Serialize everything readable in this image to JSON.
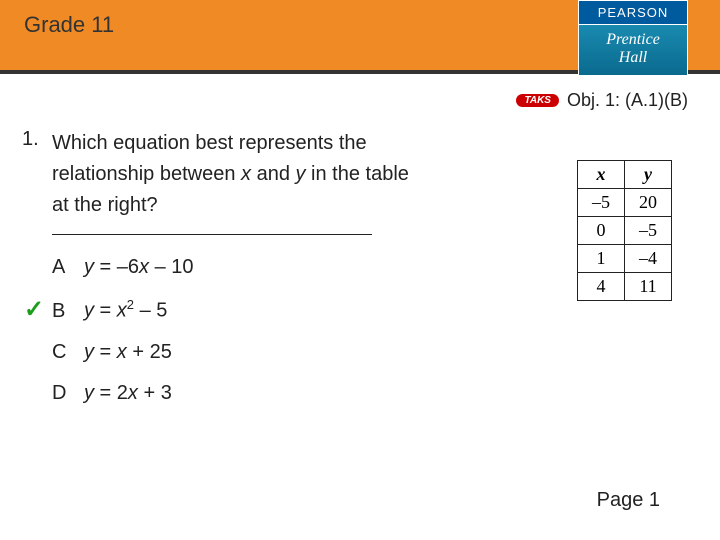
{
  "header": {
    "grade": "Grade 11"
  },
  "logo": {
    "pearson": "PEARSON",
    "prentice1": "Prentice",
    "prentice2": "Hall"
  },
  "obj": {
    "badge": "TAKS",
    "text": "Obj. 1: (A.1)(B)"
  },
  "question": {
    "number": "1.",
    "text_parts": [
      "Which equation best represents the relationship between ",
      "x",
      " and ",
      "y",
      " in the table at the right?"
    ]
  },
  "choices": [
    {
      "letter": "A",
      "pre": "y",
      "eq": " = –6",
      "var": "x",
      "post": " – 10",
      "sup": "",
      "correct": false
    },
    {
      "letter": "B",
      "pre": "y",
      "eq": " = ",
      "var": "x",
      "post": " – 5",
      "sup": "2",
      "correct": true
    },
    {
      "letter": "C",
      "pre": "y",
      "eq": " = ",
      "var": "x",
      "post": " + 25",
      "sup": "",
      "correct": false
    },
    {
      "letter": "D",
      "pre": "y",
      "eq": " = 2",
      "var": "x",
      "post": " + 3",
      "sup": "",
      "correct": false
    }
  ],
  "table": {
    "headers": [
      "x",
      "y"
    ],
    "rows": [
      [
        "–5",
        "20"
      ],
      [
        "0",
        "–5"
      ],
      [
        "1",
        "–4"
      ],
      [
        "4",
        "11"
      ]
    ]
  },
  "page": "Page 1",
  "colors": {
    "header_bg": "#f08a24",
    "check": "#1a9e1a",
    "pearson": "#005a9e",
    "prentice": "#0a7a9e",
    "taks": "#c00"
  }
}
